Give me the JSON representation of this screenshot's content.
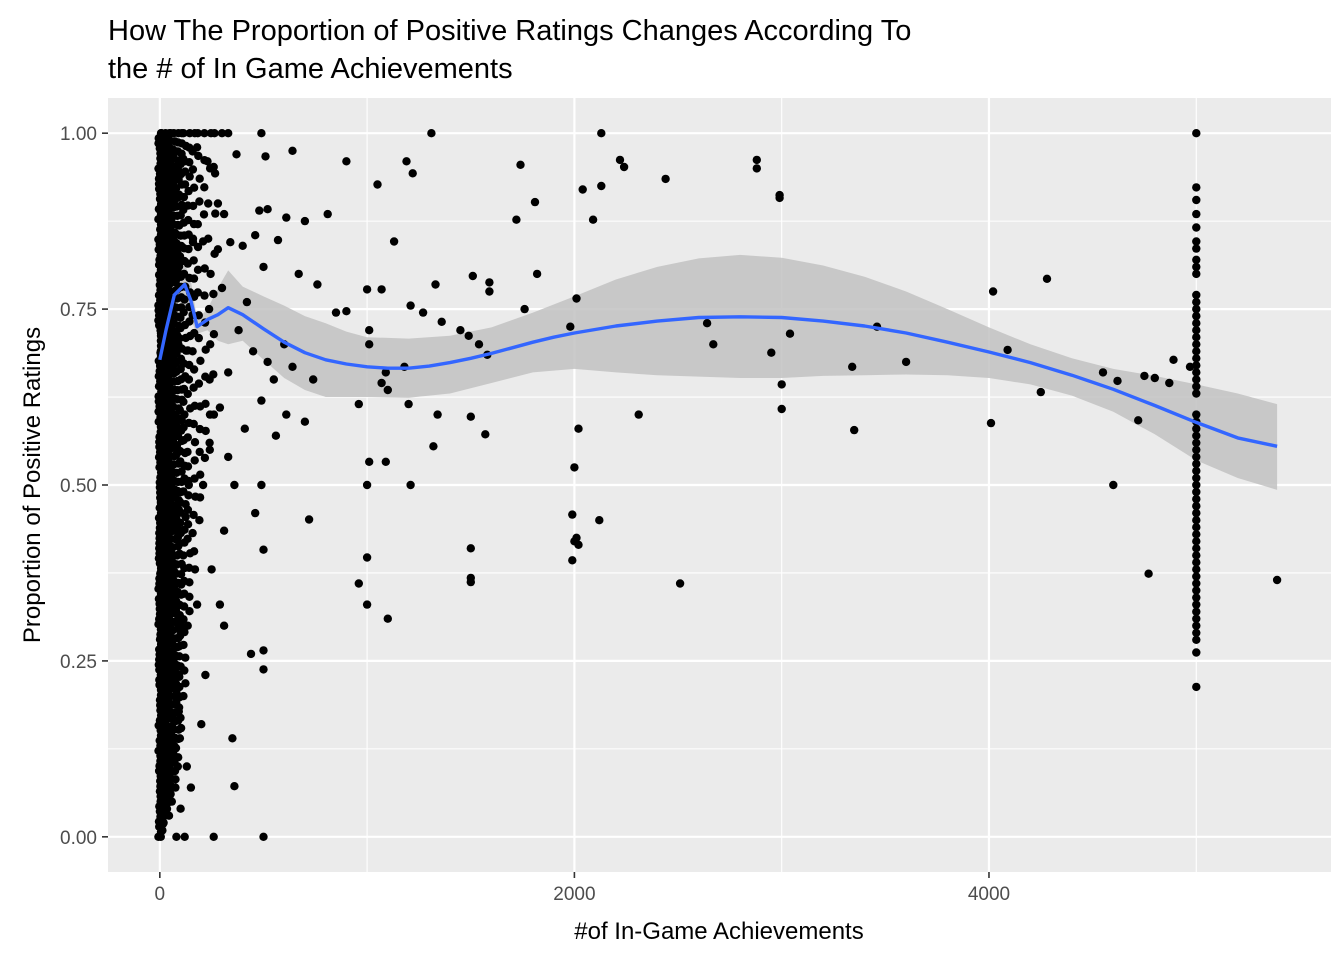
{
  "chart_data": {
    "type": "scatter",
    "title_lines": [
      "How The Proportion of Positive Ratings Changes According To",
      "the # of In Game Achievements"
    ],
    "xlabel": "#of In-Game Achievements",
    "ylabel": "Proportion of Positive Ratings",
    "xlim": [
      -250,
      5650
    ],
    "ylim": [
      -0.05,
      1.05
    ],
    "x_ticks": [
      0,
      2000,
      4000
    ],
    "x_tick_labels": [
      "0",
      "2000",
      "4000"
    ],
    "y_ticks": [
      0,
      0.25,
      0.5,
      0.75,
      1.0
    ],
    "y_tick_labels": [
      "0.00",
      "0.25",
      "0.50",
      "0.75",
      "1.00"
    ],
    "grid": true,
    "panel_background": "#ebebeb",
    "point_color": "#000000",
    "smooth_color": "#3366ff",
    "ribbon_color": "#c2c2c2",
    "points": [
      [
        1310,
        1.0
      ],
      [
        2130,
        1.0
      ],
      [
        5000,
        1.0
      ],
      [
        2220,
        0.962
      ],
      [
        2880,
        0.962
      ],
      [
        2880,
        0.95
      ],
      [
        900,
        0.96
      ],
      [
        1190,
        0.96
      ],
      [
        1220,
        0.943
      ],
      [
        1740,
        0.955
      ],
      [
        2240,
        0.952
      ],
      [
        2440,
        0.935
      ],
      [
        1050,
        0.927
      ],
      [
        2040,
        0.92
      ],
      [
        2130,
        0.925
      ],
      [
        5000,
        0.923
      ],
      [
        2990,
        0.912
      ],
      [
        2990,
        0.908
      ],
      [
        1810,
        0.902
      ],
      [
        5000,
        0.905
      ],
      [
        1720,
        0.877
      ],
      [
        2090,
        0.877
      ],
      [
        5000,
        0.885
      ],
      [
        5000,
        0.866
      ],
      [
        810,
        0.885
      ],
      [
        700,
        0.875
      ],
      [
        1130,
        0.846
      ],
      [
        5000,
        0.846
      ],
      [
        5000,
        0.836
      ],
      [
        5000,
        0.82
      ],
      [
        5000,
        0.81
      ],
      [
        5000,
        0.8
      ],
      [
        1820,
        0.8
      ],
      [
        1510,
        0.797
      ],
      [
        1590,
        0.788
      ],
      [
        4280,
        0.793
      ],
      [
        760,
        0.785
      ],
      [
        1330,
        0.785
      ],
      [
        1000,
        0.778
      ],
      [
        1070,
        0.778
      ],
      [
        1590,
        0.775
      ],
      [
        2010,
        0.765
      ],
      [
        4020,
        0.775
      ],
      [
        5000,
        0.77
      ],
      [
        5000,
        0.76
      ],
      [
        5000,
        0.75
      ],
      [
        1210,
        0.755
      ],
      [
        1760,
        0.75
      ],
      [
        900,
        0.747
      ],
      [
        1270,
        0.745
      ],
      [
        5000,
        0.74
      ],
      [
        5000,
        0.73
      ],
      [
        5000,
        0.72
      ],
      [
        5000,
        0.71
      ],
      [
        1360,
        0.732
      ],
      [
        1450,
        0.72
      ],
      [
        1980,
        0.725
      ],
      [
        2640,
        0.73
      ],
      [
        3460,
        0.725
      ],
      [
        850,
        0.745
      ],
      [
        1010,
        0.72
      ],
      [
        3040,
        0.715
      ],
      [
        2670,
        0.7
      ],
      [
        5000,
        0.7
      ],
      [
        5000,
        0.69
      ],
      [
        5000,
        0.68
      ],
      [
        5000,
        0.67
      ],
      [
        5000,
        0.66
      ],
      [
        1540,
        0.7
      ],
      [
        1490,
        0.712
      ],
      [
        1010,
        0.7
      ],
      [
        2950,
        0.688
      ],
      [
        4090,
        0.692
      ],
      [
        1580,
        0.685
      ],
      [
        3600,
        0.675
      ],
      [
        4890,
        0.678
      ],
      [
        4970,
        0.668
      ],
      [
        3340,
        0.668
      ],
      [
        1180,
        0.668
      ],
      [
        1090,
        0.66
      ],
      [
        4550,
        0.66
      ],
      [
        4750,
        0.655
      ],
      [
        4800,
        0.652
      ],
      [
        4620,
        0.648
      ],
      [
        4870,
        0.645
      ],
      [
        740,
        0.65
      ],
      [
        5000,
        0.65
      ],
      [
        5000,
        0.64
      ],
      [
        5000,
        0.63
      ],
      [
        1070,
        0.645
      ],
      [
        3000,
        0.643
      ],
      [
        1100,
        0.635
      ],
      [
        4250,
        0.632
      ],
      [
        960,
        0.615
      ],
      [
        1200,
        0.615
      ],
      [
        3000,
        0.608
      ],
      [
        2310,
        0.6
      ],
      [
        1340,
        0.6
      ],
      [
        1500,
        0.597
      ],
      [
        4720,
        0.592
      ],
      [
        4010,
        0.588
      ],
      [
        3350,
        0.578
      ],
      [
        2020,
        0.58
      ],
      [
        1570,
        0.572
      ],
      [
        5000,
        0.6
      ],
      [
        5000,
        0.59
      ],
      [
        5000,
        0.58
      ],
      [
        5000,
        0.57
      ],
      [
        5000,
        0.56
      ],
      [
        5000,
        0.55
      ],
      [
        5000,
        0.54
      ],
      [
        5000,
        0.53
      ],
      [
        5000,
        0.52
      ],
      [
        5000,
        0.51
      ],
      [
        5000,
        0.5
      ],
      [
        5000,
        0.49
      ],
      [
        5000,
        0.48
      ],
      [
        5000,
        0.47
      ],
      [
        5000,
        0.46
      ],
      [
        5000,
        0.45
      ],
      [
        5000,
        0.44
      ],
      [
        5000,
        0.43
      ],
      [
        5000,
        0.42
      ],
      [
        5000,
        0.41
      ],
      [
        5000,
        0.4
      ],
      [
        5000,
        0.39
      ],
      [
        5000,
        0.38
      ],
      [
        5000,
        0.37
      ],
      [
        5000,
        0.36
      ],
      [
        5000,
        0.35
      ],
      [
        5000,
        0.34
      ],
      [
        5000,
        0.33
      ],
      [
        5000,
        0.32
      ],
      [
        5000,
        0.31
      ],
      [
        5000,
        0.3
      ],
      [
        5000,
        0.29
      ],
      [
        5000,
        0.28
      ],
      [
        5000,
        0.262
      ],
      [
        5000,
        0.213
      ],
      [
        1320,
        0.555
      ],
      [
        2000,
        0.525
      ],
      [
        1010,
        0.533
      ],
      [
        1090,
        0.533
      ],
      [
        1000,
        0.5
      ],
      [
        1210,
        0.5
      ],
      [
        4600,
        0.5
      ],
      [
        1990,
        0.458
      ],
      [
        2120,
        0.45
      ],
      [
        720,
        0.451
      ],
      [
        2010,
        0.425
      ],
      [
        2000,
        0.42
      ],
      [
        2020,
        0.415
      ],
      [
        1500,
        0.41
      ],
      [
        1990,
        0.393
      ],
      [
        1000,
        0.397
      ],
      [
        1500,
        0.368
      ],
      [
        1500,
        0.362
      ],
      [
        960,
        0.36
      ],
      [
        2510,
        0.36
      ],
      [
        4770,
        0.374
      ],
      [
        5390,
        0.365
      ],
      [
        1000,
        0.33
      ],
      [
        1100,
        0.31
      ],
      [
        300,
        1.0
      ],
      [
        330,
        1.0
      ],
      [
        490,
        1.0
      ],
      [
        180,
        0.98
      ],
      [
        230,
        0.96
      ],
      [
        260,
        0.952
      ],
      [
        370,
        0.97
      ],
      [
        510,
        0.967
      ],
      [
        640,
        0.975
      ],
      [
        280,
        0.9
      ],
      [
        310,
        0.885
      ],
      [
        480,
        0.89
      ],
      [
        520,
        0.892
      ],
      [
        610,
        0.88
      ],
      [
        340,
        0.845
      ],
      [
        400,
        0.84
      ],
      [
        460,
        0.855
      ],
      [
        570,
        0.848
      ],
      [
        280,
        0.835
      ],
      [
        500,
        0.81
      ],
      [
        670,
        0.8
      ],
      [
        300,
        0.78
      ],
      [
        420,
        0.76
      ],
      [
        380,
        0.72
      ],
      [
        600,
        0.7
      ],
      [
        450,
        0.69
      ],
      [
        330,
        0.66
      ],
      [
        520,
        0.675
      ],
      [
        640,
        0.668
      ],
      [
        550,
        0.65
      ],
      [
        490,
        0.62
      ],
      [
        610,
        0.6
      ],
      [
        290,
        0.61
      ],
      [
        410,
        0.58
      ],
      [
        700,
        0.59
      ],
      [
        560,
        0.57
      ],
      [
        240,
        0.56
      ],
      [
        330,
        0.54
      ],
      [
        490,
        0.5
      ],
      [
        460,
        0.46
      ],
      [
        500,
        0.408
      ],
      [
        310,
        0.435
      ],
      [
        360,
        0.5
      ],
      [
        250,
        0.38
      ],
      [
        290,
        0.33
      ],
      [
        310,
        0.3
      ],
      [
        440,
        0.26
      ],
      [
        500,
        0.265
      ],
      [
        500,
        0.238
      ],
      [
        350,
        0.14
      ],
      [
        360,
        0.072
      ],
      [
        260,
        0.0
      ],
      [
        500,
        0.0
      ],
      [
        180,
        0.33
      ],
      [
        220,
        0.23
      ],
      [
        200,
        0.16
      ],
      [
        150,
        0.07
      ],
      [
        120,
        0.0
      ],
      [
        80,
        0.0
      ],
      [
        100,
        0.04
      ],
      [
        130,
        0.1
      ],
      [
        140,
        0.5
      ],
      [
        160,
        0.85
      ],
      [
        120,
        0.96
      ]
    ],
    "dense_columns": [
      {
        "x": 0,
        "ymin": 0.0,
        "ymax": 1.0,
        "n": 140
      },
      {
        "x": 10,
        "ymin": 0.0,
        "ymax": 1.0,
        "n": 110
      },
      {
        "x": 25,
        "ymin": 0.02,
        "ymax": 1.0,
        "n": 110
      },
      {
        "x": 40,
        "ymin": 0.03,
        "ymax": 1.0,
        "n": 100
      },
      {
        "x": 55,
        "ymin": 0.05,
        "ymax": 1.0,
        "n": 90
      },
      {
        "x": 70,
        "ymin": 0.07,
        "ymax": 1.0,
        "n": 80
      },
      {
        "x": 85,
        "ymin": 0.1,
        "ymax": 1.0,
        "n": 70
      },
      {
        "x": 100,
        "ymin": 0.14,
        "ymax": 1.0,
        "n": 60
      },
      {
        "x": 120,
        "ymin": 0.2,
        "ymax": 1.0,
        "n": 45
      },
      {
        "x": 140,
        "ymin": 0.3,
        "ymax": 1.0,
        "n": 35
      },
      {
        "x": 165,
        "ymin": 0.38,
        "ymax": 1.0,
        "n": 25
      },
      {
        "x": 190,
        "ymin": 0.45,
        "ymax": 1.0,
        "n": 18
      },
      {
        "x": 215,
        "ymin": 0.5,
        "ymax": 1.0,
        "n": 14
      },
      {
        "x": 240,
        "ymin": 0.55,
        "ymax": 1.0,
        "n": 10
      },
      {
        "x": 265,
        "ymin": 0.6,
        "ymax": 1.0,
        "n": 8
      }
    ],
    "smooth_line": [
      [
        0,
        0.678
      ],
      [
        30,
        0.72
      ],
      [
        70,
        0.77
      ],
      [
        120,
        0.785
      ],
      [
        150,
        0.762
      ],
      [
        180,
        0.725
      ],
      [
        230,
        0.735
      ],
      [
        280,
        0.742
      ],
      [
        330,
        0.752
      ],
      [
        400,
        0.742
      ],
      [
        500,
        0.722
      ],
      [
        600,
        0.703
      ],
      [
        700,
        0.688
      ],
      [
        800,
        0.678
      ],
      [
        900,
        0.672
      ],
      [
        1000,
        0.668
      ],
      [
        1100,
        0.666
      ],
      [
        1200,
        0.666
      ],
      [
        1300,
        0.669
      ],
      [
        1400,
        0.674
      ],
      [
        1500,
        0.68
      ],
      [
        1600,
        0.687
      ],
      [
        1700,
        0.695
      ],
      [
        1800,
        0.703
      ],
      [
        1900,
        0.71
      ],
      [
        2000,
        0.716
      ],
      [
        2200,
        0.726
      ],
      [
        2400,
        0.733
      ],
      [
        2600,
        0.738
      ],
      [
        2800,
        0.739
      ],
      [
        3000,
        0.738
      ],
      [
        3200,
        0.733
      ],
      [
        3400,
        0.726
      ],
      [
        3600,
        0.716
      ],
      [
        3800,
        0.703
      ],
      [
        4000,
        0.689
      ],
      [
        4200,
        0.674
      ],
      [
        4400,
        0.656
      ],
      [
        4600,
        0.636
      ],
      [
        4800,
        0.613
      ],
      [
        5000,
        0.589
      ],
      [
        5200,
        0.567
      ],
      [
        5390,
        0.555
      ]
    ],
    "ribbon_upper": [
      [
        0,
        0.68
      ],
      [
        70,
        0.775
      ],
      [
        120,
        0.815
      ],
      [
        150,
        0.79
      ],
      [
        180,
        0.735
      ],
      [
        230,
        0.75
      ],
      [
        280,
        0.78
      ],
      [
        330,
        0.805
      ],
      [
        400,
        0.782
      ],
      [
        500,
        0.768
      ],
      [
        600,
        0.755
      ],
      [
        700,
        0.74
      ],
      [
        800,
        0.73
      ],
      [
        900,
        0.718
      ],
      [
        1000,
        0.71
      ],
      [
        1200,
        0.708
      ],
      [
        1400,
        0.712
      ],
      [
        1600,
        0.724
      ],
      [
        1800,
        0.745
      ],
      [
        2000,
        0.768
      ],
      [
        2200,
        0.792
      ],
      [
        2400,
        0.81
      ],
      [
        2600,
        0.822
      ],
      [
        2800,
        0.827
      ],
      [
        3000,
        0.823
      ],
      [
        3200,
        0.812
      ],
      [
        3400,
        0.796
      ],
      [
        3600,
        0.775
      ],
      [
        3800,
        0.75
      ],
      [
        4000,
        0.724
      ],
      [
        4200,
        0.7
      ],
      [
        4400,
        0.68
      ],
      [
        4600,
        0.665
      ],
      [
        4800,
        0.655
      ],
      [
        5000,
        0.643
      ],
      [
        5200,
        0.63
      ],
      [
        5390,
        0.615
      ]
    ],
    "ribbon_lower": [
      [
        0,
        0.675
      ],
      [
        70,
        0.765
      ],
      [
        120,
        0.755
      ],
      [
        150,
        0.735
      ],
      [
        180,
        0.715
      ],
      [
        230,
        0.72
      ],
      [
        280,
        0.705
      ],
      [
        330,
        0.7
      ],
      [
        400,
        0.705
      ],
      [
        500,
        0.678
      ],
      [
        600,
        0.652
      ],
      [
        700,
        0.635
      ],
      [
        800,
        0.625
      ],
      [
        900,
        0.625
      ],
      [
        1000,
        0.625
      ],
      [
        1200,
        0.624
      ],
      [
        1400,
        0.63
      ],
      [
        1600,
        0.645
      ],
      [
        1800,
        0.66
      ],
      [
        2000,
        0.665
      ],
      [
        2200,
        0.66
      ],
      [
        2400,
        0.656
      ],
      [
        2600,
        0.654
      ],
      [
        2800,
        0.652
      ],
      [
        3000,
        0.652
      ],
      [
        3200,
        0.655
      ],
      [
        3400,
        0.656
      ],
      [
        3600,
        0.657
      ],
      [
        3800,
        0.656
      ],
      [
        4000,
        0.652
      ],
      [
        4200,
        0.643
      ],
      [
        4400,
        0.627
      ],
      [
        4600,
        0.604
      ],
      [
        4800,
        0.572
      ],
      [
        5000,
        0.535
      ],
      [
        5200,
        0.51
      ],
      [
        5390,
        0.493
      ]
    ]
  }
}
